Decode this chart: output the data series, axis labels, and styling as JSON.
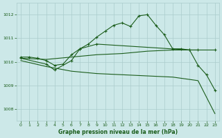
{
  "background_color": "#cce8e8",
  "grid_color": "#aacccc",
  "line_color": "#1a5c1a",
  "title": "Graphe pression niveau de la mer (hPa)",
  "xlim": [
    -0.5,
    23.5
  ],
  "ylim": [
    1007.5,
    1012.5
  ],
  "xticks": [
    0,
    1,
    2,
    3,
    4,
    5,
    6,
    7,
    8,
    9,
    10,
    11,
    12,
    13,
    14,
    15,
    16,
    17,
    18,
    19,
    20,
    21,
    22,
    23
  ],
  "yticks": [
    1008,
    1009,
    1010,
    1011,
    1012
  ],
  "line1_marker": {
    "x": [
      0,
      1,
      2,
      3,
      4,
      5,
      6,
      7,
      8,
      9,
      10,
      11,
      12,
      13,
      14,
      15,
      16,
      17,
      18,
      19,
      20,
      21,
      22,
      23
    ],
    "y": [
      1010.2,
      1010.2,
      1010.15,
      1010.05,
      1009.85,
      1009.9,
      1010.3,
      1010.55,
      1010.75,
      1011.05,
      1011.3,
      1011.55,
      1011.65,
      1011.5,
      1011.95,
      1012.0,
      1011.55,
      1011.15,
      1010.55,
      1010.55,
      1010.5,
      1009.85,
      1009.45,
      1008.8
    ]
  },
  "line2_nomarker": {
    "x": [
      0,
      3,
      6,
      9,
      12,
      15,
      18,
      21
    ],
    "y": [
      1010.15,
      1010.1,
      1010.2,
      1010.3,
      1010.35,
      1010.45,
      1010.5,
      1010.5
    ]
  },
  "line3_nomarker": {
    "x": [
      0,
      3,
      6,
      9,
      12,
      15,
      18,
      21,
      23
    ],
    "y": [
      1010.05,
      1009.8,
      1009.6,
      1009.5,
      1009.45,
      1009.4,
      1009.35,
      1009.2,
      1007.8
    ]
  },
  "line4_marker": {
    "x": [
      0,
      3,
      4,
      6,
      7,
      9,
      20,
      21,
      23
    ],
    "y": [
      1010.15,
      1009.9,
      1009.65,
      1010.05,
      1010.55,
      1010.75,
      1010.5,
      1010.5,
      1010.5
    ]
  }
}
